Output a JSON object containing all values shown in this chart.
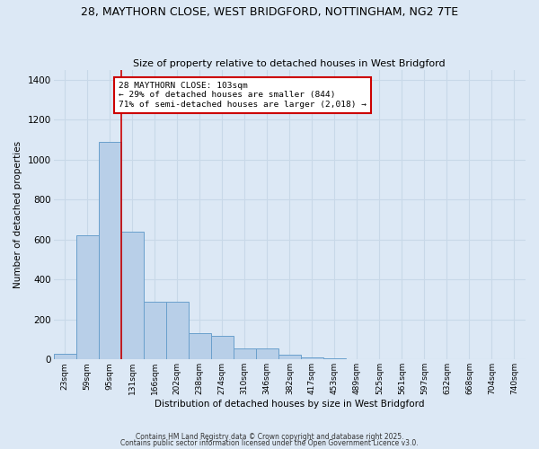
{
  "title_line1": "28, MAYTHORN CLOSE, WEST BRIDGFORD, NOTTINGHAM, NG2 7TE",
  "title_line2": "Size of property relative to detached houses in West Bridgford",
  "xlabel": "Distribution of detached houses by size in West Bridgford",
  "ylabel": "Number of detached properties",
  "footnote1": "Contains HM Land Registry data © Crown copyright and database right 2025.",
  "footnote2": "Contains public sector information licensed under the Open Government Licence v3.0.",
  "bar_labels": [
    "23sqm",
    "59sqm",
    "95sqm",
    "131sqm",
    "166sqm",
    "202sqm",
    "238sqm",
    "274sqm",
    "310sqm",
    "346sqm",
    "382sqm",
    "417sqm",
    "453sqm",
    "489sqm",
    "525sqm",
    "561sqm",
    "597sqm",
    "632sqm",
    "668sqm",
    "704sqm",
    "740sqm"
  ],
  "bar_values": [
    30,
    620,
    1090,
    640,
    290,
    290,
    130,
    120,
    55,
    55,
    25,
    10,
    5,
    0,
    0,
    0,
    0,
    0,
    0,
    0,
    0
  ],
  "bar_color": "#b8cfe8",
  "bar_edge_color": "#6aa0cc",
  "background_color": "#dce8f5",
  "grid_color": "#c8d8e8",
  "red_line_x": 2.5,
  "red_line_color": "#cc0000",
  "annotation_text": "28 MAYTHORN CLOSE: 103sqm\n← 29% of detached houses are smaller (844)\n71% of semi-detached houses are larger (2,018) →",
  "annotation_box_color": "#ffffff",
  "annotation_box_edge": "#cc0000",
  "ylim": [
    0,
    1450
  ],
  "yticks": [
    0,
    200,
    400,
    600,
    800,
    1000,
    1200,
    1400
  ]
}
